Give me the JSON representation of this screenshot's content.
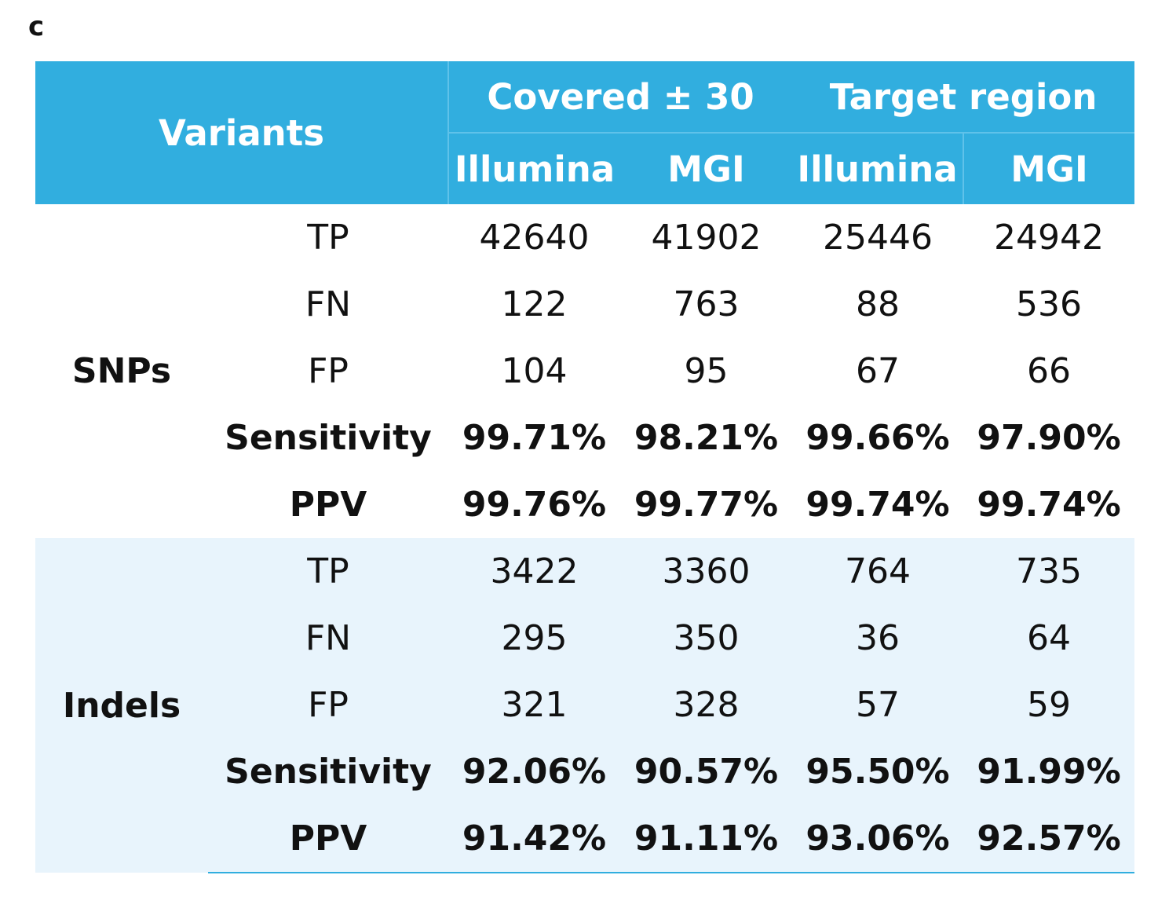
{
  "panel_label": "c",
  "header": {
    "variants": "Variants",
    "groups": [
      "Covered ± 30",
      "Target region"
    ],
    "platforms": [
      "Illumina",
      "MGI",
      "Illumina",
      "MGI"
    ]
  },
  "sections": [
    {
      "name": "SNPs",
      "rows": [
        {
          "metric": "TP",
          "values": [
            "42640",
            "41902",
            "25446",
            "24942"
          ],
          "bold": false
        },
        {
          "metric": "FN",
          "values": [
            "122",
            "763",
            "88",
            "536"
          ],
          "bold": false
        },
        {
          "metric": "FP",
          "values": [
            "104",
            "95",
            "67",
            "66"
          ],
          "bold": false
        },
        {
          "metric": "Sensitivity",
          "values": [
            "99.71%",
            "98.21%",
            "99.66%",
            "97.90%"
          ],
          "bold": true
        },
        {
          "metric": "PPV",
          "values": [
            "99.76%",
            "99.77%",
            "99.74%",
            "99.74%"
          ],
          "bold": true
        }
      ]
    },
    {
      "name": "Indels",
      "rows": [
        {
          "metric": "TP",
          "values": [
            "3422",
            "3360",
            "764",
            "735"
          ],
          "bold": false
        },
        {
          "metric": "FN",
          "values": [
            "295",
            "350",
            "36",
            "64"
          ],
          "bold": false
        },
        {
          "metric": "FP",
          "values": [
            "321",
            "328",
            "57",
            "59"
          ],
          "bold": false
        },
        {
          "metric": "Sensitivity",
          "values": [
            "92.06%",
            "90.57%",
            "95.50%",
            "91.99%"
          ],
          "bold": true
        },
        {
          "metric": "PPV",
          "values": [
            "91.42%",
            "91.11%",
            "93.06%",
            "92.57%"
          ],
          "bold": true
        }
      ]
    }
  ],
  "colors": {
    "header_bg": "#31aedf",
    "indels_bg": "#e8f4fc",
    "header_text": "#ffffff"
  }
}
